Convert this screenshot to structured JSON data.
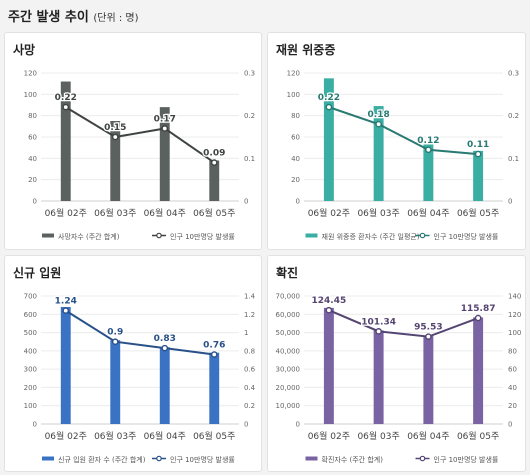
{
  "page": {
    "title": "주간 발생 추이",
    "unit": "(단위 : 명)"
  },
  "chart_data": [
    {
      "type": "bar",
      "title": "사망",
      "color": "#5a615e",
      "categories": [
        "06월 02주",
        "06월 03주",
        "06월 04주",
        "06월 05주"
      ],
      "ylim": [
        0,
        120
      ],
      "yticks": [
        0,
        20,
        40,
        60,
        80,
        100,
        120
      ],
      "y2lim": [
        0,
        0.3
      ],
      "y2ticks": [
        "0",
        "0.1",
        "0.2",
        "0.3"
      ],
      "series": [
        {
          "name": "사망자수 (주간 합계)",
          "kind": "bar",
          "values": [
            112,
            75,
            88,
            38
          ]
        },
        {
          "name": "인구 10만명당 발생률",
          "kind": "line",
          "axis": "right",
          "values": [
            0.22,
            0.15,
            0.17,
            0.09
          ],
          "labels": [
            "0.22",
            "0.15",
            "0.17",
            "0.09"
          ]
        }
      ]
    },
    {
      "type": "bar",
      "title": "재원 위중증",
      "color": "#3aaea3",
      "categories": [
        "06월 02주",
        "06월 03주",
        "06월 04주",
        "06월 05주"
      ],
      "ylim": [
        0,
        120
      ],
      "yticks": [
        0,
        20,
        40,
        60,
        80,
        100,
        120
      ],
      "y2lim": [
        0,
        0.3
      ],
      "y2ticks": [
        "0",
        "0.1",
        "0.2",
        "0.3"
      ],
      "series": [
        {
          "name": "재원 위중증 환자수 (주간 일평균)",
          "kind": "bar",
          "values": [
            115,
            89,
            53,
            47
          ]
        },
        {
          "name": "인구 10만명당 발생률",
          "kind": "line",
          "axis": "right",
          "values": [
            0.22,
            0.18,
            0.12,
            0.11
          ],
          "labels": [
            "0.22",
            "0.18",
            "0.12",
            "0.11"
          ]
        }
      ]
    },
    {
      "type": "bar",
      "title": "신규 입원",
      "color": "#3b73c4",
      "categories": [
        "06월 02주",
        "06월 03주",
        "06월 04주",
        "06월 05주"
      ],
      "ylim": [
        0,
        700
      ],
      "yticks": [
        0,
        100,
        200,
        300,
        400,
        500,
        600,
        700
      ],
      "y2lim": [
        0,
        1.4
      ],
      "y2ticks": [
        "0",
        "0.2",
        "0.4",
        "0.6",
        "0.8",
        "1",
        "1.2",
        "1.4"
      ],
      "series": [
        {
          "name": "신규 입원 환자 수 (주간 합계)",
          "kind": "bar",
          "values": [
            640,
            458,
            420,
            390
          ]
        },
        {
          "name": "인구 10만명당 발생률",
          "kind": "line",
          "axis": "right",
          "values": [
            1.24,
            0.9,
            0.83,
            0.76
          ],
          "labels": [
            "1.24",
            "0.9",
            "0.83",
            "0.76"
          ]
        }
      ]
    },
    {
      "type": "bar",
      "title": "확진",
      "color": "#7a63a3",
      "categories": [
        "06월 02주",
        "06월 03주",
        "06월 04주",
        "06월 05주"
      ],
      "ylim": [
        0,
        70000
      ],
      "yticks": [
        "0",
        "10,000",
        "20,000",
        "30,000",
        "40,000",
        "50,000",
        "60,000",
        "70,000"
      ],
      "y2lim": [
        0,
        140
      ],
      "y2ticks": [
        "0",
        "20",
        "40",
        "60",
        "80",
        "100",
        "120",
        "140"
      ],
      "series": [
        {
          "name": "확진자수 (주간 합계)",
          "kind": "bar",
          "values": [
            63500,
            51200,
            48200,
            58300
          ]
        },
        {
          "name": "인구 10만명당 발생률",
          "kind": "line",
          "axis": "right",
          "values": [
            124.45,
            101.34,
            95.53,
            115.87
          ],
          "labels": [
            "124.45",
            "101.34",
            "95.53",
            "115.87"
          ]
        }
      ]
    }
  ]
}
